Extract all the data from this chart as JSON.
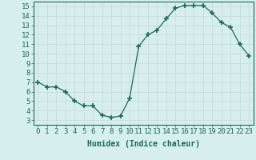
{
  "x": [
    0,
    1,
    2,
    3,
    4,
    5,
    6,
    7,
    8,
    9,
    10,
    11,
    12,
    13,
    14,
    15,
    16,
    17,
    18,
    19,
    20,
    21,
    22,
    23
  ],
  "y": [
    7.0,
    6.5,
    6.5,
    6.0,
    5.0,
    4.5,
    4.5,
    3.5,
    3.3,
    3.4,
    5.3,
    10.8,
    12.0,
    12.5,
    13.7,
    14.8,
    15.1,
    15.1,
    15.1,
    14.3,
    13.3,
    12.8,
    11.0,
    9.8
  ],
  "line_color": "#1a6b5a",
  "marker": "+",
  "marker_size": 4,
  "bg_color": "#d6eeee",
  "grid_color": "#c8d8d8",
  "tick_color": "#1a6b5a",
  "label_color": "#1a6b5a",
  "xlabel": "Humidex (Indice chaleur)",
  "xlim": [
    -0.5,
    23.5
  ],
  "ylim": [
    2.5,
    15.5
  ],
  "yticks": [
    3,
    4,
    5,
    6,
    7,
    8,
    9,
    10,
    11,
    12,
    13,
    14,
    15
  ],
  "xticks": [
    0,
    1,
    2,
    3,
    4,
    5,
    6,
    7,
    8,
    9,
    10,
    11,
    12,
    13,
    14,
    15,
    16,
    17,
    18,
    19,
    20,
    21,
    22,
    23
  ],
  "xlabel_fontsize": 7,
  "tick_fontsize": 6.5
}
